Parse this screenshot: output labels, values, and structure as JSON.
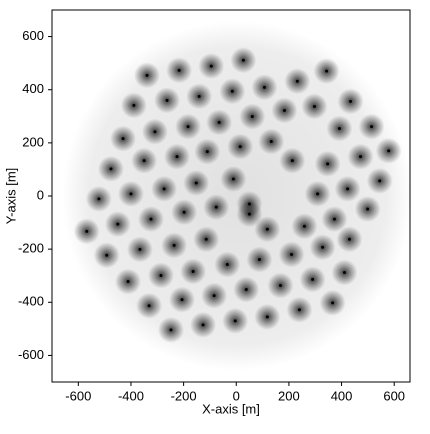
{
  "chart_data": {
    "type": "scatter",
    "x_label": "X-axis [m]",
    "y_label": "Y-axis [m]",
    "color": "#000000",
    "x": [
      -339,
      -217,
      -95,
      27,
      232,
      343,
      -389,
      -263,
      -141,
      -15,
      107,
      297,
      434,
      -430,
      -309,
      -183,
      -65,
      61,
      183,
      392,
      514,
      -476,
      -350,
      -225,
      -110,
      15,
      133,
      213,
      347,
      472,
      579,
      -522,
      -400,
      -274,
      -152,
      -11,
      309,
      423,
      545,
      -450,
      -324,
      -198,
      -76,
      50,
      118,
      259,
      373,
      499,
      -568,
      -492,
      -366,
      -236,
      -114,
      -34,
      88,
      210,
      328,
      430,
      -411,
      -286,
      -164,
      38,
      168,
      290,
      411,
      -331,
      -206,
      -84,
      240,
      366,
      -248,
      -126,
      -4,
      118,
      50
    ],
    "values": [
      454,
      473,
      489,
      511,
      432,
      470,
      341,
      360,
      375,
      394,
      409,
      337,
      356,
      216,
      242,
      261,
      277,
      299,
      322,
      254,
      261,
      102,
      133,
      148,
      167,
      186,
      205,
      133,
      121,
      148,
      170,
      -11,
      8,
      27,
      49,
      64,
      8,
      27,
      57,
      -106,
      -87,
      -61,
      -42,
      -30,
      -125,
      -114,
      -87,
      -49,
      -133,
      -223,
      -201,
      -186,
      -163,
      -258,
      -239,
      -220,
      -193,
      -163,
      -322,
      -299,
      -284,
      -352,
      -337,
      -314,
      -288,
      -413,
      -390,
      -375,
      -428,
      -402,
      -504,
      -485,
      -470,
      -455,
      -68
    ],
    "xlim": [
      -700,
      660
    ],
    "ylim": [
      -700,
      700
    ],
    "xticks": [
      -600,
      -400,
      -200,
      0,
      200,
      400,
      600
    ],
    "yticks": [
      -600,
      -400,
      -200,
      0,
      200,
      400,
      600
    ]
  }
}
